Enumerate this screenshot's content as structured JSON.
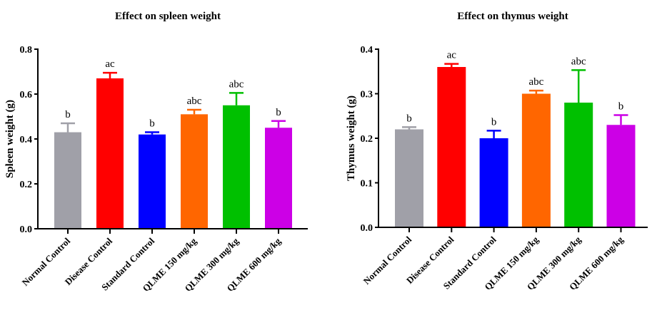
{
  "chart_data": [
    {
      "type": "bar",
      "title": "Effect on spleen weight",
      "xlabel": "",
      "ylabel": "Spleen weight (g)",
      "ylim": [
        0,
        0.8
      ],
      "yticks": [
        "0.0",
        "0.2",
        "0.4",
        "0.6",
        "0.8"
      ],
      "categories": [
        "Normal Control",
        "Disease Control",
        "Standard Control",
        "QLME 150 mg/kg",
        "QLME 300 mg/kg",
        "QLME 600 mg/kg"
      ],
      "values": [
        0.43,
        0.67,
        0.42,
        0.51,
        0.55,
        0.45
      ],
      "error_upper": [
        0.04,
        0.025,
        0.01,
        0.02,
        0.055,
        0.03
      ],
      "annotations": [
        "b",
        "ac",
        "b",
        "abc",
        "abc",
        "b"
      ],
      "colors": [
        "#a0a0a8",
        "#ff0000",
        "#0000ff",
        "#ff6600",
        "#00c000",
        "#cc00e6"
      ]
    },
    {
      "type": "bar",
      "title": "Effect on thymus weight",
      "xlabel": "",
      "ylabel": "Thymus weight (g)",
      "ylim": [
        0,
        0.4
      ],
      "yticks": [
        "0.0",
        "0.1",
        "0.2",
        "0.3",
        "0.4"
      ],
      "categories": [
        "Normal Control",
        "Disease Control",
        "Standard Control",
        "QLME 150 mg/kg",
        "QLME 300 mg/kg",
        "QLME 600 mg/kg"
      ],
      "values": [
        0.22,
        0.36,
        0.2,
        0.3,
        0.28,
        0.23
      ],
      "error_upper": [
        0.005,
        0.007,
        0.017,
        0.007,
        0.073,
        0.022
      ],
      "annotations": [
        "b",
        "ac",
        "b",
        "abc",
        "abc",
        "b"
      ],
      "colors": [
        "#a0a0a8",
        "#ff0000",
        "#0000ff",
        "#ff6600",
        "#00c000",
        "#cc00e6"
      ]
    }
  ]
}
